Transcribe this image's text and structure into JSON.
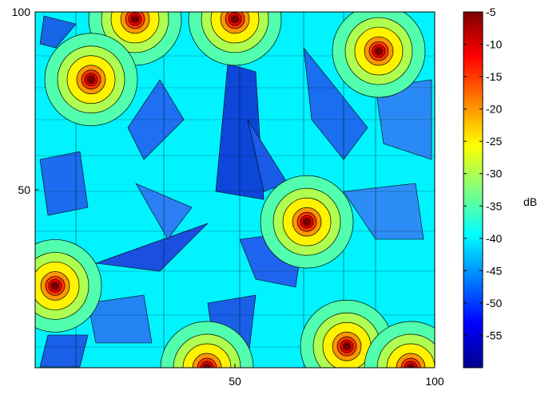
{
  "chart_data": {
    "type": "heatmap",
    "title": "",
    "xlabel": "",
    "ylabel": "",
    "xlim": [
      0,
      100
    ],
    "ylim": [
      0,
      100
    ],
    "x_ticks": [
      {
        "value": 50,
        "label": "50"
      },
      {
        "value": 100,
        "label": "100"
      }
    ],
    "y_ticks": [
      {
        "value": 50,
        "label": "50"
      },
      {
        "value": 100,
        "label": "100"
      }
    ],
    "colorbar": {
      "label": "dB",
      "range": [
        -60,
        -5
      ],
      "colormap": "jet",
      "ticks": [
        {
          "value": -5,
          "label": "-5"
        },
        {
          "value": -10,
          "label": "-10"
        },
        {
          "value": -15,
          "label": "-15"
        },
        {
          "value": -20,
          "label": "-20"
        },
        {
          "value": -25,
          "label": "-25"
        },
        {
          "value": -30,
          "label": "-30"
        },
        {
          "value": -35,
          "label": "-35"
        },
        {
          "value": -40,
          "label": "-40"
        },
        {
          "value": -45,
          "label": "-45"
        },
        {
          "value": -50,
          "label": "-50"
        },
        {
          "value": -55,
          "label": "-55"
        }
      ]
    },
    "sources": [
      {
        "x": 25,
        "y": 98,
        "peak_db": -5
      },
      {
        "x": 50,
        "y": 98,
        "peak_db": -5
      },
      {
        "x": 86,
        "y": 89,
        "peak_db": -5
      },
      {
        "x": 14,
        "y": 81,
        "peak_db": -5
      },
      {
        "x": 68,
        "y": 41,
        "peak_db": -5
      },
      {
        "x": 5,
        "y": 23,
        "peak_db": -5
      },
      {
        "x": 78,
        "y": 6,
        "peak_db": -5
      },
      {
        "x": 43,
        "y": 0,
        "peak_db": -5
      },
      {
        "x": 94,
        "y": 0,
        "peak_db": -5
      }
    ],
    "background_db": -40,
    "low_regions_db": -52
  }
}
